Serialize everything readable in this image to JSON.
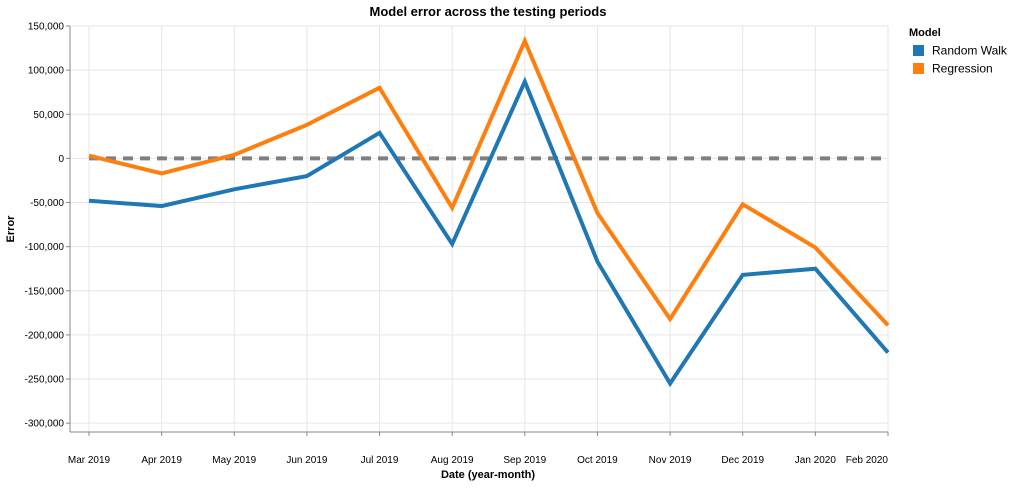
{
  "chart_data": {
    "type": "line",
    "title": "Model error across the testing periods",
    "xlabel": "Date (year-month)",
    "ylabel": "Error",
    "categories": [
      "Mar 2019",
      "Apr 2019",
      "May 2019",
      "Jun 2019",
      "Jul 2019",
      "Aug 2019",
      "Sep 2019",
      "Oct 2019",
      "Nov 2019",
      "Dec 2019",
      "Jan 2020",
      "Feb 2020"
    ],
    "ylim": [
      -310000,
      150000
    ],
    "yticks": [
      150000,
      100000,
      50000,
      0,
      -50000,
      -100000,
      -150000,
      -200000,
      -250000,
      -300000
    ],
    "ytick_labels": [
      "150,000",
      "100,000",
      "50,000",
      "0",
      "-50,000",
      "-100,000",
      "-150,000",
      "-200,000",
      "-250,000",
      "-300,000"
    ],
    "grid": true,
    "legend": {
      "title": "Model",
      "position": "right"
    },
    "series": [
      {
        "name": "Random Walk",
        "color": "#1f77b4",
        "values": [
          -48000,
          -54000,
          -35000,
          -20000,
          29000,
          -97000,
          87000,
          -117000,
          -255000,
          -132000,
          -125000,
          -220000
        ]
      },
      {
        "name": "Regression",
        "color": "#ff7f0e",
        "values": [
          3000,
          -17000,
          4000,
          38000,
          80000,
          -56000,
          133000,
          -62000,
          -182000,
          -52000,
          -101000,
          -189000
        ]
      }
    ],
    "reference_line": {
      "value": 0,
      "color": "#7f7f7f",
      "style": "dashed"
    }
  }
}
